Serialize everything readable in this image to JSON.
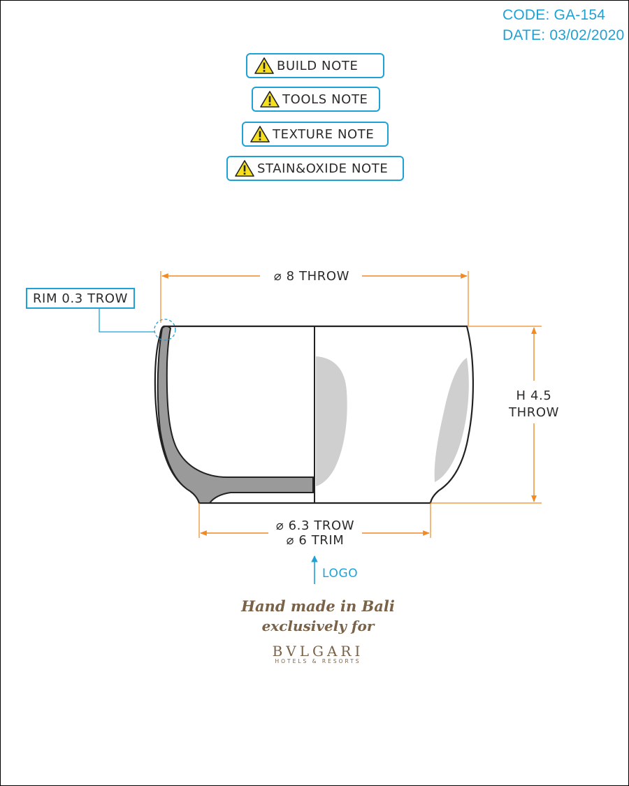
{
  "header": {
    "code": "CODE: GA-154",
    "date": "DATE: 03/02/2020"
  },
  "notes": [
    {
      "label": "BUILD NOTE",
      "icon": "warning-triangle-icon"
    },
    {
      "label": "TOOLS NOTE",
      "icon": "warning-triangle-icon"
    },
    {
      "label": "TEXTURE NOTE",
      "icon": "warning-triangle-icon"
    },
    {
      "label": "STAIN&OXIDE NOTE",
      "icon": "warning-triangle-icon"
    }
  ],
  "dimensions": {
    "diameter_top": "⌀ 8 THROW",
    "rim": "RIM 0.3 TROW",
    "height_line1": "H 4.5",
    "height_line2": "THROW",
    "base_line1": "⌀ 6.3 TROW",
    "base_line2": "⌀ 6 TRIM"
  },
  "logo_marker": "LOGO",
  "branding": {
    "line1": "Hand made in Bali",
    "line2": "exclusively for",
    "brand": "BVLGARI",
    "sub": "HOTELS & RESORTS"
  },
  "colors": {
    "accent": "#1ea2d6",
    "dimension": "#f08a24",
    "section": "#9a9a9a",
    "shading": "#cfcfcf",
    "brand": "#7a6248"
  }
}
